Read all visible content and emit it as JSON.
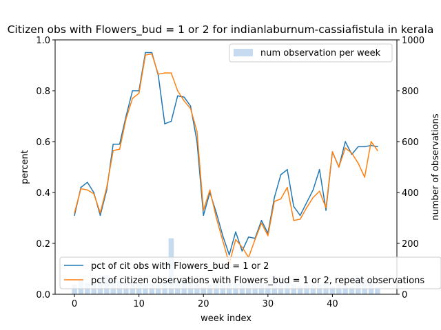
{
  "chart_data": {
    "type": "line",
    "title": "Citizen obs with Flowers_bud = 1 or 2 for indianlaburnum-cassiafistula in kerala",
    "xlabel": "week index",
    "ylabel": "percent",
    "y2label": "number of observations",
    "xlim": [
      -3,
      50
    ],
    "ylim": [
      0,
      1.0
    ],
    "y2lim": [
      0,
      1000
    ],
    "xticks": [
      0,
      10,
      20,
      30,
      40
    ],
    "yticks": [
      0.0,
      0.2,
      0.4,
      0.6,
      0.8,
      1.0
    ],
    "yticklabels": [
      "0.0",
      "0.2",
      "0.4",
      "0.6",
      "0.8",
      "1.0"
    ],
    "y2ticks": [
      0,
      200,
      400,
      600,
      800,
      1000
    ],
    "x": [
      0,
      1,
      2,
      3,
      4,
      5,
      6,
      7,
      8,
      9,
      10,
      11,
      12,
      13,
      14,
      15,
      16,
      17,
      18,
      19,
      20,
      21,
      22,
      23,
      24,
      25,
      26,
      27,
      28,
      29,
      30,
      31,
      32,
      33,
      34,
      35,
      36,
      37,
      38,
      39,
      40,
      41,
      42,
      43,
      44,
      45,
      46,
      47
    ],
    "series": [
      {
        "name": "pct of cit obs with Flowers_bud = 1 or 2",
        "color": "#1f77b4",
        "values": [
          0.31,
          0.42,
          0.44,
          0.4,
          0.31,
          0.41,
          0.59,
          0.59,
          0.7,
          0.8,
          0.8,
          0.95,
          0.95,
          0.86,
          0.67,
          0.68,
          0.78,
          0.775,
          0.74,
          0.6,
          0.31,
          0.4,
          0.32,
          0.23,
          0.155,
          0.245,
          0.17,
          0.225,
          0.22,
          0.29,
          0.24,
          0.38,
          0.47,
          0.49,
          0.345,
          0.31,
          0.36,
          0.41,
          0.49,
          0.33,
          0.56,
          0.5,
          0.6,
          0.55,
          0.58,
          0.58,
          0.585,
          0.58
        ]
      },
      {
        "name": "pct of citizen observations with Flowers_bud = 1 or 2, repeat observations",
        "color": "#ff7f0e",
        "values": [
          0.32,
          0.415,
          0.41,
          0.395,
          0.32,
          0.42,
          0.565,
          0.57,
          0.69,
          0.77,
          0.79,
          0.94,
          0.945,
          0.865,
          0.87,
          0.87,
          0.8,
          0.76,
          0.73,
          0.64,
          0.33,
          0.41,
          0.3,
          0.21,
          0.12,
          0.215,
          0.185,
          0.145,
          0.215,
          0.28,
          0.23,
          0.365,
          0.375,
          0.42,
          0.29,
          0.295,
          0.34,
          0.38,
          0.405,
          0.34,
          0.56,
          0.5,
          0.575,
          0.555,
          0.515,
          0.46,
          0.6,
          0.565
        ]
      }
    ],
    "bars": {
      "name": "num observation per week",
      "color": "#c6dbef",
      "axis": "right",
      "values": [
        38,
        58,
        45,
        45,
        65,
        75,
        60,
        52,
        48,
        50,
        45,
        40,
        40,
        38,
        44,
        220,
        55,
        60,
        45,
        40,
        30,
        38,
        42,
        35,
        40,
        40,
        38,
        45,
        42,
        40,
        40,
        68,
        50,
        40,
        38,
        32,
        38,
        35,
        40,
        42,
        30,
        38,
        40,
        30,
        65,
        60,
        50,
        28
      ]
    },
    "legend_upper": {
      "location": "upper-right"
    },
    "legend_lower": {
      "location": "lower-left"
    },
    "grid": false
  }
}
